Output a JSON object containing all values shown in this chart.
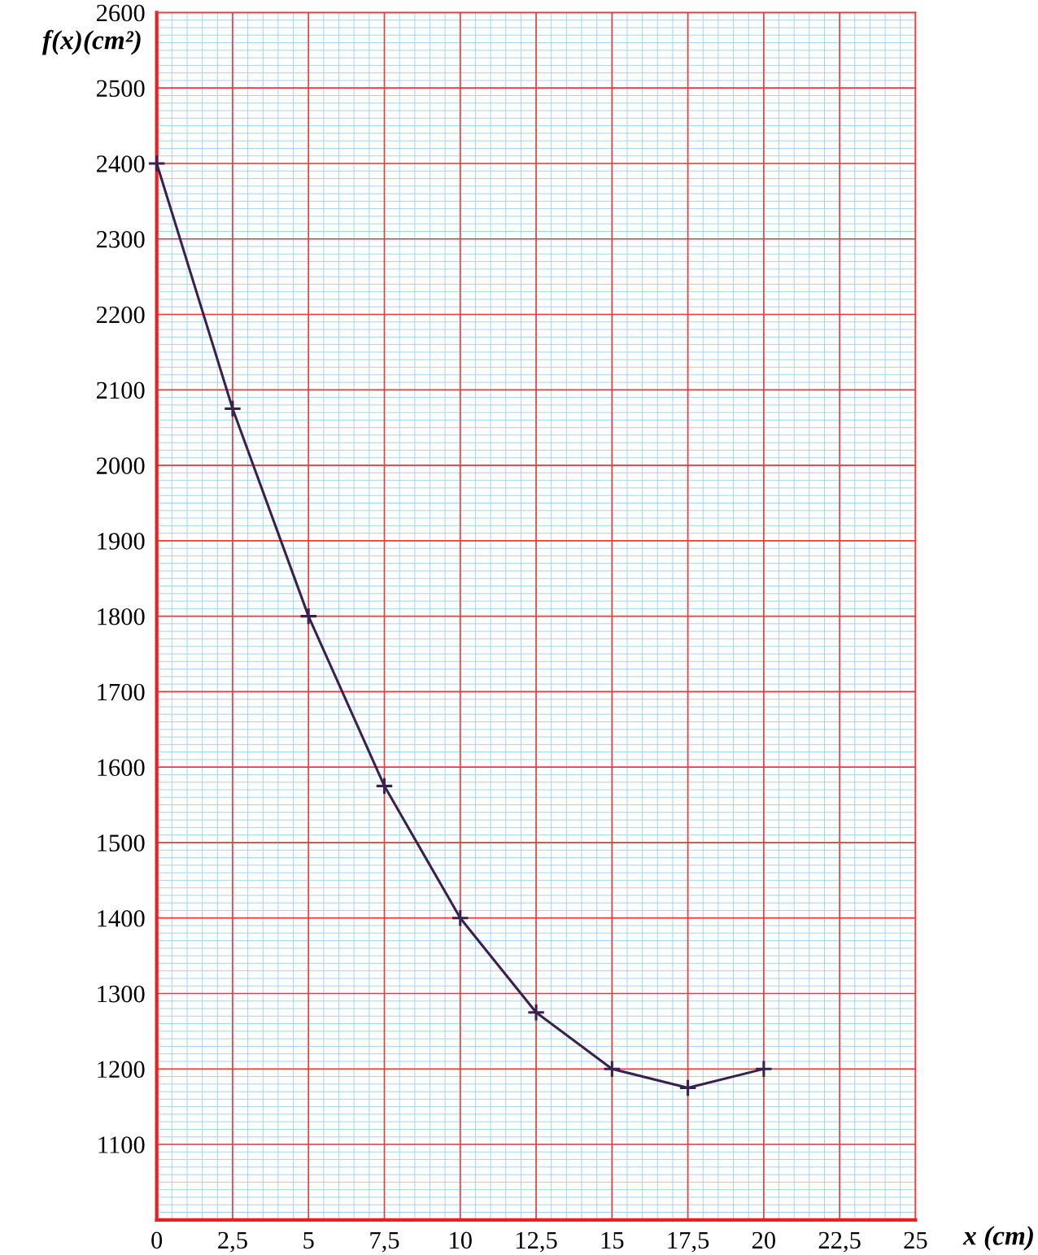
{
  "chart_data": {
    "type": "line",
    "xlabel": "x (cm)",
    "ylabel": "f(x)(cm²)",
    "x": [
      0,
      2.5,
      5,
      7.5,
      10,
      12.5,
      15,
      17.5,
      20
    ],
    "series": [
      {
        "color": "#3a2050",
        "values": [
          2400,
          2075,
          1800,
          1575,
          1400,
          1275,
          1200,
          1175,
          1200
        ]
      }
    ],
    "xlim": [
      0,
      25
    ],
    "ylim": [
      1000,
      2600
    ],
    "xticks": [
      0,
      {
        "value": 2.5,
        "label": "2,5"
      },
      5,
      {
        "value": 7.5,
        "label": "7,5"
      },
      10,
      {
        "value": 12.5,
        "label": "12,5"
      },
      15,
      {
        "value": 17.5,
        "label": "17,5"
      },
      20,
      {
        "value": 22.5,
        "label": "22,5"
      },
      25
    ],
    "yticks": [
      1100,
      1200,
      1300,
      1400,
      1500,
      1600,
      1700,
      1800,
      1900,
      2000,
      2100,
      2200,
      2300,
      2400,
      2500,
      2600
    ],
    "grid": true,
    "marker": "cross",
    "line_style": "solid"
  }
}
